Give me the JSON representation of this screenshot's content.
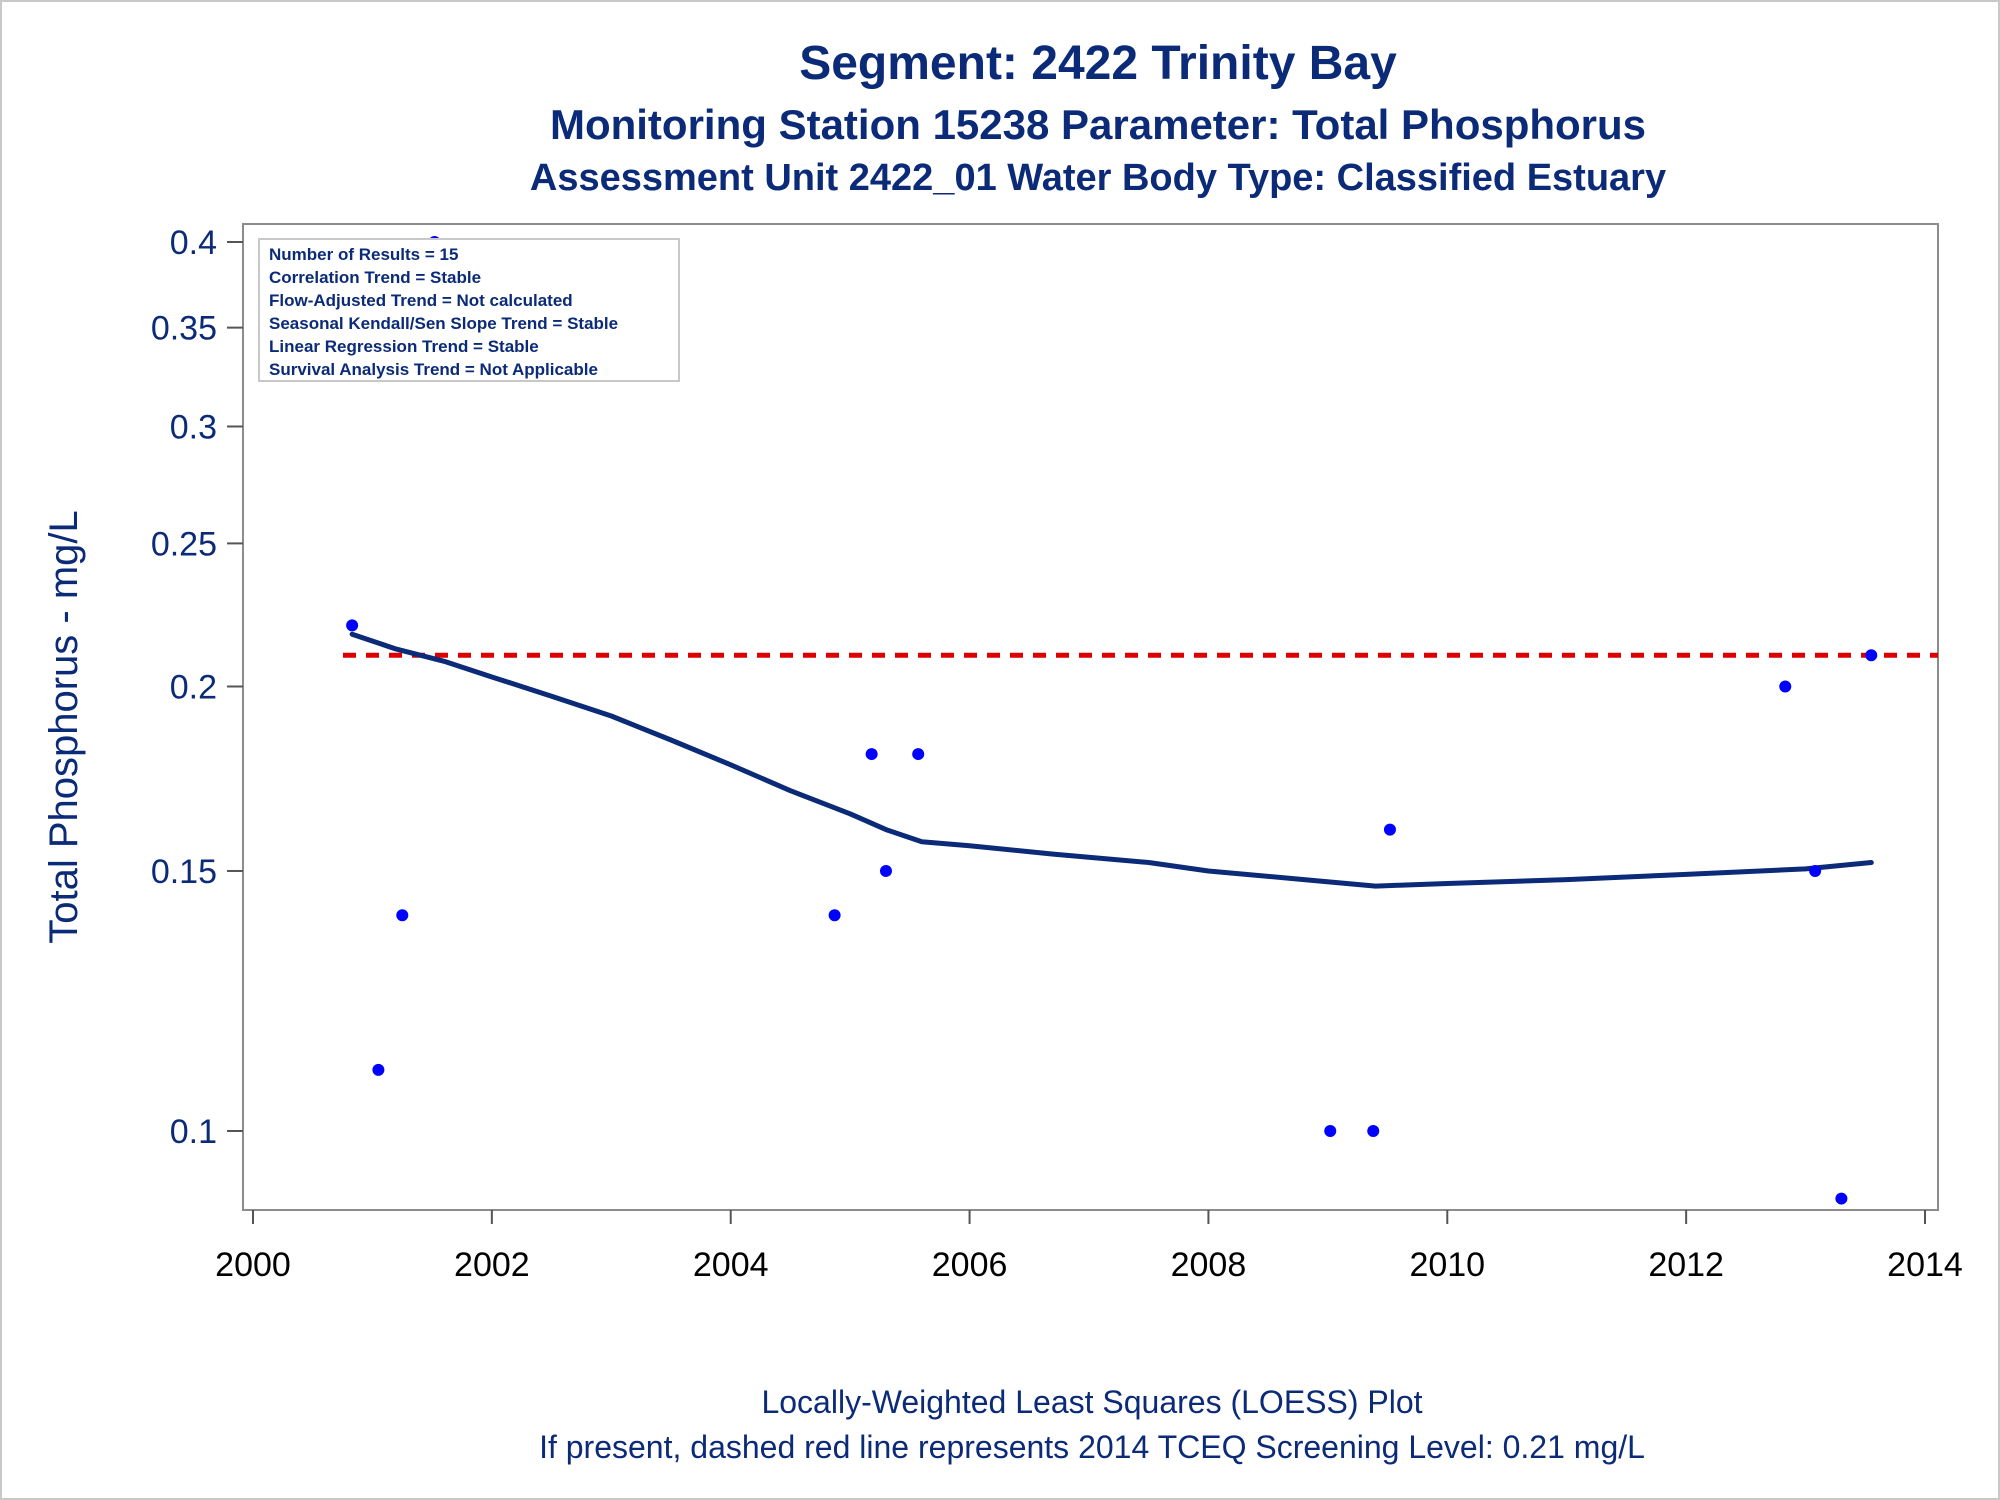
{
  "chart_data": {
    "type": "scatter",
    "title": "Segment: 2422  Trinity Bay",
    "subtitle": "Monitoring Station 15238 Parameter: Total Phosphorus",
    "subtitle2": "Assessment Unit 2422_01   Water Body Type: Classified Estuary",
    "ylabel": "Total Phosphorus - mg/L",
    "xlabel": "",
    "yscale": "log",
    "xlim": [
      2000,
      2014
    ],
    "ylim": [
      0.088,
      0.4
    ],
    "x_ticks": [
      "2000",
      "2002",
      "2004",
      "2006",
      "2008",
      "2010",
      "2012",
      "2014"
    ],
    "y_ticks": [
      "0.4",
      "0.35",
      "0.3",
      "0.25",
      "0.2",
      "0.15",
      "0.1"
    ],
    "stats_box": [
      "Number of Results = 15",
      "Correlation Trend = Stable",
      "Flow-Adjusted Trend = Not calculated",
      "Seasonal Kendall/Sen Slope Trend = Stable",
      "Linear Regression Trend = Stable",
      "Survival Analysis Trend = Not Applicable"
    ],
    "footnote1": "Locally-Weighted Least Squares (LOESS) Plot",
    "footnote2": "If present, dashed red line represents 2014 TCEQ Screening Level: 0.21 mg/L",
    "series": [
      {
        "type": "scatter",
        "color": "#0000ff",
        "x": [
          2000.83,
          2001.05,
          2001.25,
          2001.52,
          2004.87,
          2005.18,
          2005.3,
          2005.57,
          2009.02,
          2009.38,
          2009.52,
          2012.83,
          2013.08,
          2013.3,
          2013.55
        ],
        "y": [
          0.22,
          0.11,
          0.14,
          0.4,
          0.14,
          0.18,
          0.15,
          0.18,
          0.1,
          0.1,
          0.16,
          0.2,
          0.15,
          0.09,
          0.21
        ]
      },
      {
        "type": "line",
        "color": "#0b2a78",
        "x": [
          2000.83,
          2001.2,
          2001.6,
          2002.0,
          2002.5,
          2003.0,
          2003.5,
          2004.0,
          2004.5,
          2005.0,
          2005.3,
          2005.6,
          2006.0,
          2006.7,
          2007.5,
          2008.0,
          2008.8,
          2009.4,
          2009.6,
          2010.0,
          2011.0,
          2012.0,
          2013.0,
          2013.55
        ],
        "y": [
          0.217,
          0.212,
          0.208,
          0.203,
          0.197,
          0.191,
          0.184,
          0.177,
          0.17,
          0.164,
          0.16,
          0.157,
          0.156,
          0.154,
          0.152,
          0.15,
          0.148,
          0.1465,
          0.1467,
          0.1471,
          0.148,
          0.1492,
          0.1505,
          0.152
        ]
      }
    ],
    "reference_line": {
      "y": 0.21,
      "color": "#dd0000",
      "style": "dashed"
    }
  }
}
